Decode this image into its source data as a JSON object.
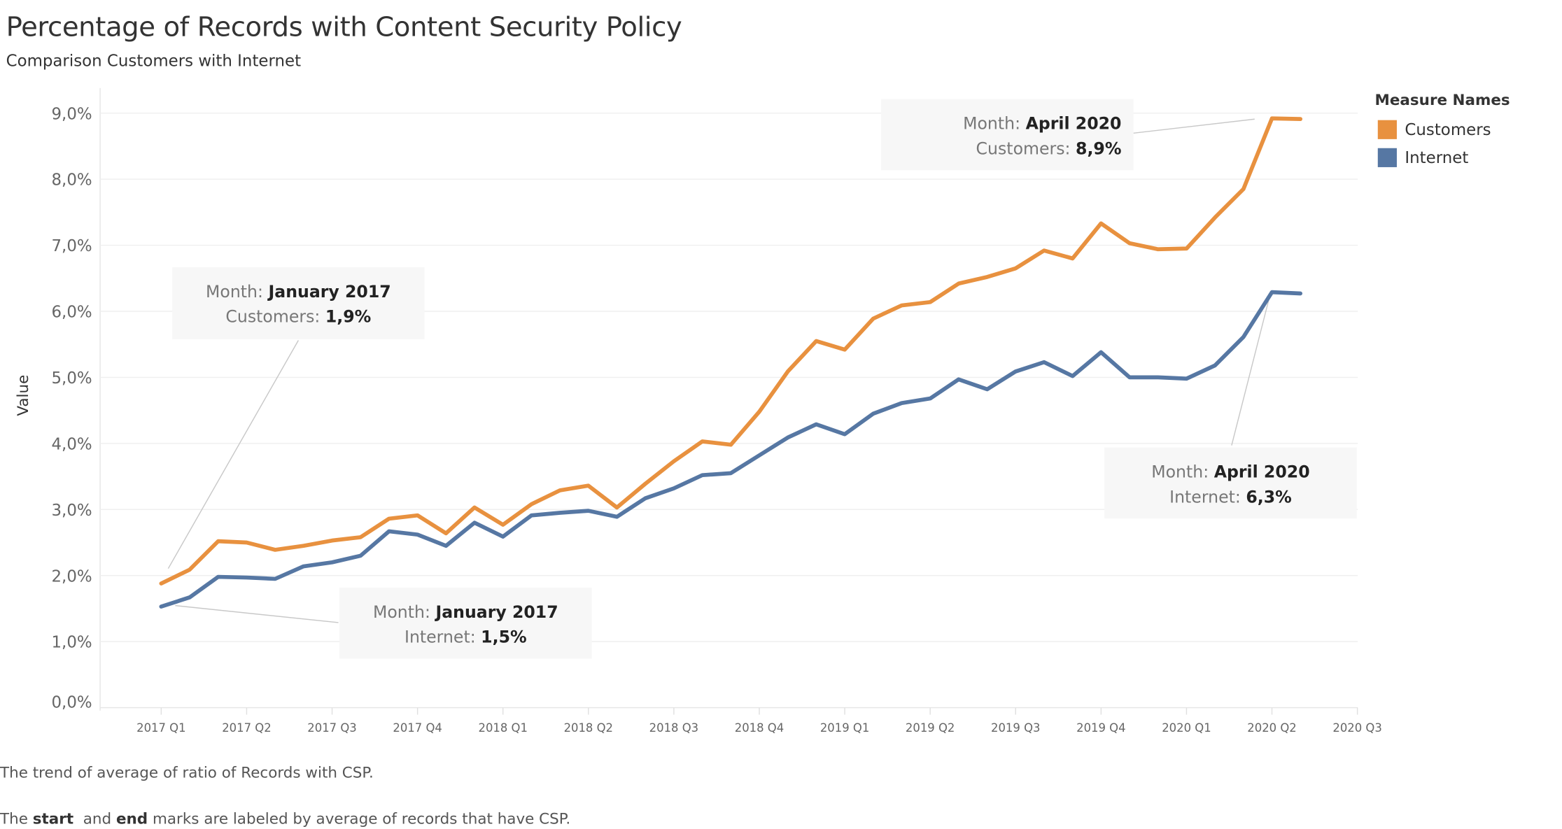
{
  "title": "Percentage of Records with Content Security Policy",
  "subtitle": "Comparison Customers with Internet",
  "legend": {
    "title": "Measure Names",
    "items": [
      {
        "label": "Customers",
        "color": "#E8913F"
      },
      {
        "label": "Internet",
        "color": "#5677A3"
      }
    ]
  },
  "captions": {
    "line1": "The trend of average of ratio of Records with CSP.",
    "line2_pre": "The ",
    "line2_start": "start",
    "line2_mid": "  and ",
    "line2_end": "end",
    "line2_post": " marks are labeled by average of records that have CSP."
  },
  "annotations": [
    {
      "month_label": "Month:",
      "month": "January 2017",
      "series_label": "Customers:",
      "value": "1,9%"
    },
    {
      "month_label": "Month:",
      "month": "January 2017",
      "series_label": "Internet:",
      "value": "1,5%"
    },
    {
      "month_label": "Month:",
      "month": "April 2020",
      "series_label": "Customers:",
      "value": "8,9%"
    },
    {
      "month_label": "Month:",
      "month": "April 2020",
      "series_label": "Internet:",
      "value": "6,3%"
    }
  ],
  "chart_data": {
    "type": "line",
    "title": "Percentage of Records with Content Security Policy",
    "subtitle": "Comparison Customers with Internet",
    "xlabel": "",
    "ylabel": "Value",
    "x_unit": "month",
    "x_start": "2017-01",
    "x_tick_labels": [
      "2017 Q1",
      "2017 Q2",
      "2017 Q3",
      "2017 Q4",
      "2018 Q1",
      "2018 Q2",
      "2018 Q3",
      "2018 Q4",
      "2019 Q1",
      "2019 Q2",
      "2019 Q3",
      "2019 Q4",
      "2020 Q1",
      "2020 Q2",
      "2020 Q3"
    ],
    "y_tick_labels": [
      "0,0%",
      "1,0%",
      "2,0%",
      "3,0%",
      "4,0%",
      "5,0%",
      "6,0%",
      "7,0%",
      "8,0%",
      "9,0%"
    ],
    "ylim": [
      0,
      9.4
    ],
    "grid": true,
    "legend_placement": "right",
    "series": [
      {
        "name": "Customers",
        "color": "#E8913F",
        "values": [
          1.88,
          2.09,
          2.52,
          2.5,
          2.39,
          2.45,
          2.53,
          2.58,
          2.86,
          2.91,
          2.64,
          3.03,
          2.77,
          3.08,
          3.29,
          3.36,
          3.03,
          3.39,
          3.73,
          4.03,
          3.98,
          4.48,
          5.09,
          5.55,
          5.42,
          5.89,
          6.09,
          6.14,
          6.42,
          6.52,
          6.65,
          6.92,
          6.8,
          7.33,
          7.03,
          6.94,
          6.95,
          7.42,
          7.85,
          8.92,
          8.91
        ]
      },
      {
        "name": "Internet",
        "color": "#5677A3",
        "values": [
          1.53,
          1.67,
          1.98,
          1.97,
          1.95,
          2.14,
          2.2,
          2.3,
          2.67,
          2.62,
          2.45,
          2.8,
          2.59,
          2.91,
          2.95,
          2.98,
          2.89,
          3.17,
          3.32,
          3.52,
          3.55,
          3.82,
          4.09,
          4.29,
          4.14,
          4.45,
          4.61,
          4.68,
          4.97,
          4.82,
          5.09,
          5.23,
          5.02,
          5.38,
          5.0,
          5.0,
          4.98,
          5.18,
          5.61,
          6.29,
          6.27
        ]
      }
    ]
  }
}
